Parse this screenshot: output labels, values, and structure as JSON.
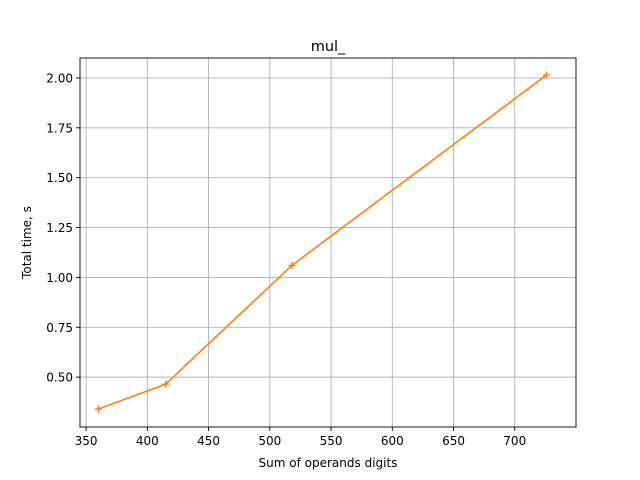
{
  "chart_data": {
    "type": "line",
    "title": "mul_",
    "xlabel": "Sum of operands digits",
    "ylabel": "Total time, s",
    "xlim": [
      345,
      750
    ],
    "ylim": [
      0.25,
      2.1
    ],
    "xticks": [
      350,
      400,
      450,
      500,
      550,
      600,
      650,
      700
    ],
    "xtick_labels": [
      "350",
      "400",
      "450",
      "500",
      "550",
      "600",
      "650",
      "700"
    ],
    "yticks": [
      0.5,
      0.75,
      1.0,
      1.25,
      1.5,
      1.75,
      2.0
    ],
    "ytick_labels": [
      "0.50",
      "0.75",
      "1.00",
      "1.25",
      "1.50",
      "1.75",
      "2.00"
    ],
    "grid": true,
    "series": [
      {
        "color": "#ff7f0e",
        "marker": "+",
        "x": [
          360,
          415,
          518,
          726
        ],
        "y": [
          0.34,
          0.465,
          1.06,
          2.015
        ]
      }
    ]
  }
}
